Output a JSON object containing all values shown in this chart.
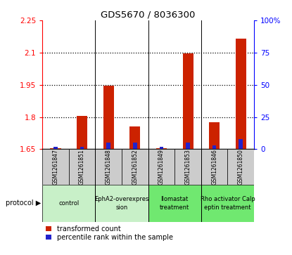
{
  "title": "GDS5670 / 8036300",
  "samples": [
    "GSM1261847",
    "GSM1261851",
    "GSM1261848",
    "GSM1261852",
    "GSM1261849",
    "GSM1261853",
    "GSM1261846",
    "GSM1261850"
  ],
  "red_values": [
    1.655,
    1.805,
    1.945,
    1.755,
    1.655,
    2.095,
    1.775,
    2.165
  ],
  "blue_values": [
    2.0,
    2.0,
    5.0,
    5.0,
    2.0,
    5.0,
    3.0,
    8.0
  ],
  "protocols": [
    {
      "label": "control",
      "span": [
        0,
        2
      ],
      "color": "#c8f0c8"
    },
    {
      "label": "EphA2-overexpres\nsion",
      "span": [
        2,
        4
      ],
      "color": "#c8f0c8"
    },
    {
      "label": "Ilomastat\ntreatment",
      "span": [
        4,
        6
      ],
      "color": "#70e870"
    },
    {
      "label": "Rho activator Calp\neptin treatment",
      "span": [
        6,
        8
      ],
      "color": "#70e870"
    }
  ],
  "ylim_left": [
    1.65,
    2.25
  ],
  "ylim_right": [
    0,
    100
  ],
  "yticks_left": [
    1.65,
    1.8,
    1.95,
    2.1,
    2.25
  ],
  "yticks_right": [
    0,
    25,
    50,
    75,
    100
  ],
  "ytick_labels_right": [
    "0",
    "25",
    "50",
    "75",
    "100%"
  ],
  "bar_bottom": 1.65,
  "red_bar_width": 0.4,
  "blue_bar_width": 0.15,
  "red_color": "#cc2200",
  "blue_color": "#2222cc",
  "bg_color": "#ffffff",
  "sample_bg_color": "#cccccc",
  "legend_red_label": "transformed count",
  "legend_blue_label": "percentile rank within the sample",
  "protocol_label": "protocol"
}
